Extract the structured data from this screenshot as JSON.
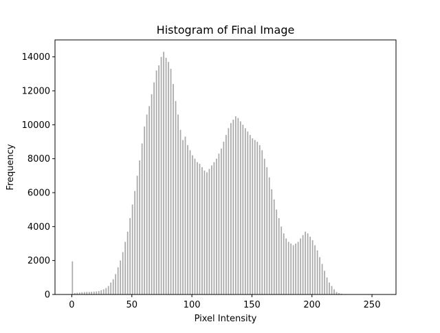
{
  "chart_data": {
    "type": "bar",
    "title": "Histogram of Final Image",
    "xlabel": "Pixel Intensity",
    "ylabel": "Frequency",
    "xlim": [
      -14,
      270
    ],
    "ylim": [
      0,
      15000
    ],
    "xticks": [
      0,
      50,
      100,
      150,
      200,
      250
    ],
    "yticks": [
      0,
      2000,
      4000,
      6000,
      8000,
      10000,
      12000,
      14000
    ],
    "bar_color": "#a9a9a9",
    "grid": false,
    "legend": "none",
    "bin_width": 1,
    "series": [
      {
        "x": [
          0,
          2,
          4,
          6,
          8,
          10,
          12,
          14,
          16,
          18,
          20,
          22,
          24,
          26,
          28,
          30,
          32,
          34,
          36,
          38,
          40,
          42,
          44,
          46,
          48,
          50,
          52,
          54,
          56,
          58,
          60,
          62,
          64,
          66,
          68,
          70,
          72,
          74,
          76,
          78,
          80,
          82,
          84,
          86,
          88,
          90,
          92,
          94,
          96,
          98,
          100,
          102,
          104,
          106,
          108,
          110,
          112,
          114,
          116,
          118,
          120,
          122,
          124,
          126,
          128,
          130,
          132,
          134,
          136,
          138,
          140,
          142,
          144,
          146,
          148,
          150,
          152,
          154,
          156,
          158,
          160,
          162,
          164,
          166,
          168,
          170,
          172,
          174,
          176,
          178,
          180,
          182,
          184,
          186,
          188,
          190,
          192,
          194,
          196,
          198,
          200,
          202,
          204,
          206,
          208,
          210,
          212,
          214,
          216,
          218,
          220,
          222,
          224,
          226,
          228,
          230,
          232,
          234,
          236,
          238,
          240,
          242,
          244,
          246,
          248,
          250,
          252,
          254
        ],
        "values": [
          1950,
          80,
          100,
          110,
          130,
          140,
          150,
          150,
          160,
          170,
          180,
          200,
          250,
          300,
          380,
          500,
          700,
          900,
          1200,
          1600,
          2000,
          2500,
          3100,
          3700,
          4500,
          5300,
          6100,
          7000,
          7900,
          8900,
          9900,
          10600,
          11100,
          11800,
          12500,
          13200,
          13500,
          14000,
          14300,
          13950,
          13700,
          13300,
          12400,
          11400,
          10600,
          9700,
          9100,
          9300,
          8800,
          8500,
          8200,
          8000,
          7800,
          7700,
          7500,
          7300,
          7200,
          7400,
          7600,
          7800,
          8000,
          8300,
          8600,
          9000,
          9400,
          9800,
          10100,
          10300,
          10500,
          10400,
          10200,
          10000,
          9800,
          9600,
          9400,
          9200,
          9100,
          9000,
          8800,
          8500,
          8000,
          7500,
          6900,
          6200,
          5600,
          5000,
          4500,
          4000,
          3600,
          3300,
          3100,
          3000,
          2900,
          3000,
          3100,
          3300,
          3500,
          3700,
          3600,
          3400,
          3200,
          2900,
          2600,
          2200,
          1800,
          1400,
          1000,
          700,
          500,
          300,
          150,
          80,
          40,
          20,
          10,
          5,
          3,
          2,
          1,
          1,
          0,
          0,
          0,
          0,
          0,
          0,
          0,
          0
        ]
      }
    ]
  }
}
